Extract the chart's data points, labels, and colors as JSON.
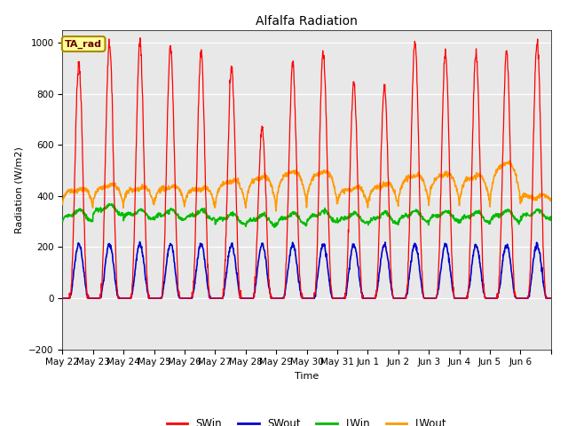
{
  "title": "Alfalfa Radiation",
  "xlabel": "Time",
  "ylabel": "Radiation (W/m2)",
  "ylim": [
    -200,
    1050
  ],
  "background_color": "#e8e8e8",
  "fig_background": "#ffffff",
  "legend_box_label": "TA_rad",
  "legend_box_color": "#ffff99",
  "legend_box_border": "#aa8800",
  "series_colors": {
    "SWin": "#ff0000",
    "SWout": "#0000cc",
    "LWin": "#00bb00",
    "LWout": "#ff9900"
  },
  "tick_labels": [
    "May 22",
    "May 23",
    "May 24",
    "May 25",
    "May 26",
    "May 27",
    "May 28",
    "May 29",
    "May 30",
    "May 31",
    "Jun 1",
    "Jun 2",
    "Jun 3",
    "Jun 4",
    "Jun 5",
    "Jun 6"
  ],
  "n_days": 16,
  "sw_peaks": [
    920,
    1000,
    1000,
    980,
    960,
    900,
    670,
    910,
    960,
    840,
    820,
    1000,
    960,
    960,
    960,
    1000
  ],
  "lw_in_bases": [
    300,
    325,
    310,
    305,
    305,
    288,
    282,
    285,
    298,
    292,
    288,
    298,
    300,
    295,
    298,
    308
  ],
  "lw_in_amps": [
    40,
    35,
    30,
    35,
    32,
    38,
    40,
    42,
    38,
    35,
    40,
    38,
    35,
    38,
    40,
    30
  ],
  "lw_out_bases": [
    365,
    365,
    365,
    365,
    360,
    355,
    350,
    360,
    370,
    365,
    360,
    370,
    370,
    368,
    370,
    380
  ],
  "lw_out_amps": [
    65,
    80,
    70,
    75,
    75,
    110,
    130,
    140,
    130,
    70,
    90,
    115,
    120,
    115,
    165,
    20
  ],
  "sw_out_peak": 210
}
